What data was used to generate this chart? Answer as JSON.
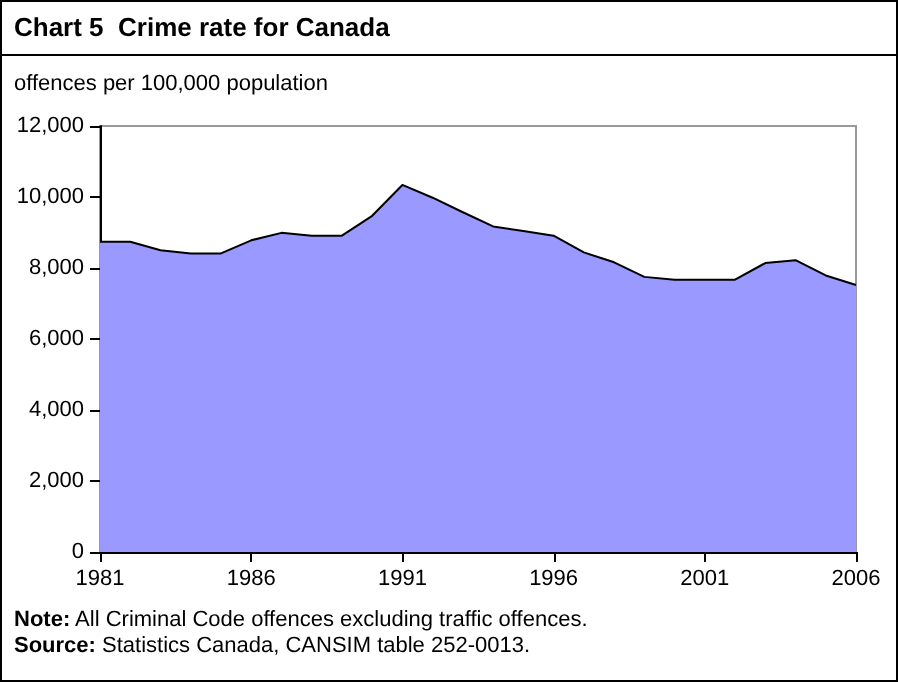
{
  "chart_data": {
    "type": "area",
    "title": "Chart 5  Crime rate for Canada",
    "ylabel": "offences per 100,000 population",
    "x": [
      1981,
      1982,
      1983,
      1984,
      1985,
      1986,
      1987,
      1988,
      1989,
      1990,
      1991,
      1992,
      1993,
      1994,
      1995,
      1996,
      1997,
      1998,
      1999,
      2000,
      2001,
      2002,
      2003,
      2004,
      2005,
      2006
    ],
    "series": [
      {
        "color": "#9999ff",
        "values": [
          8740,
          8740,
          8500,
          8410,
          8410,
          8780,
          8990,
          8910,
          8910,
          9470,
          10340,
          9980,
          9570,
          9170,
          9040,
          8910,
          8440,
          8160,
          7750,
          7670,
          7670,
          7670,
          8140,
          8220,
          7790,
          7520
        ]
      }
    ],
    "xlim": [
      1981,
      2006
    ],
    "xticks": [
      1981,
      1986,
      1991,
      1996,
      2001,
      2006
    ],
    "ylim": [
      0,
      12000
    ],
    "yticks": [
      {
        "value": 0,
        "label": "0"
      },
      {
        "value": 2000,
        "label": "2,000"
      },
      {
        "value": 4000,
        "label": "4,000"
      },
      {
        "value": 6000,
        "label": "6,000"
      },
      {
        "value": 8000,
        "label": "8,000"
      },
      {
        "value": 10000,
        "label": "10,000"
      },
      {
        "value": 12000,
        "label": "12,000"
      }
    ],
    "annotations": [
      "Note: All Criminal Code offences excluding traffic offences.",
      "Source: Statistics Canada, CANSIM table 252-0013."
    ]
  }
}
